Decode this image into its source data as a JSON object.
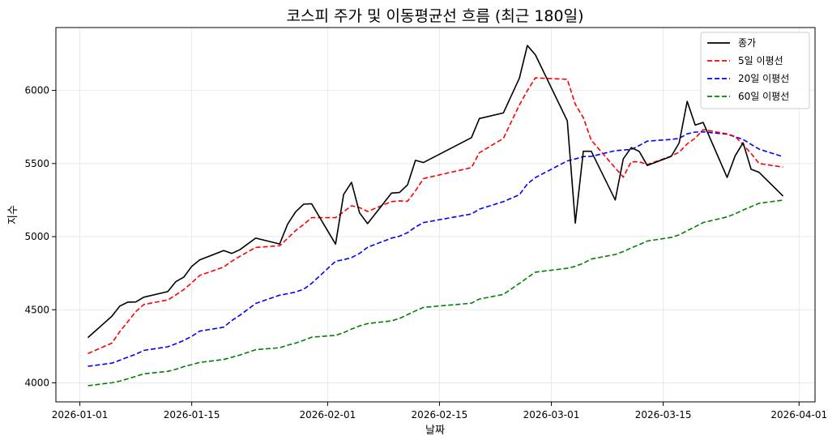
{
  "chart_data": {
    "type": "line",
    "title": "코스피 주가 및 이동평균선 흐름 (최근 180일)",
    "xlabel": "날짜",
    "ylabel": "지수",
    "x_ticks": [
      "2026-01-01",
      "2026-01-15",
      "2026-02-01",
      "2026-02-15",
      "2026-03-01",
      "2026-03-15",
      "2026-04-01"
    ],
    "y_ticks": [
      4000,
      4500,
      5000,
      5500,
      6000
    ],
    "xlim": [
      "2025-12-29",
      "2026-04-03"
    ],
    "ylim": [
      3870,
      6430
    ],
    "grid": true,
    "legend_position": "top-right",
    "series": [
      {
        "name": "종가",
        "color": "#000000",
        "dash": "solid",
        "points": [
          [
            "2026-01-02",
            4310
          ],
          [
            "2026-01-05",
            4455
          ],
          [
            "2026-01-06",
            4525
          ],
          [
            "2026-01-07",
            4552
          ],
          [
            "2026-01-08",
            4553
          ],
          [
            "2026-01-09",
            4586
          ],
          [
            "2026-01-12",
            4624
          ],
          [
            "2026-01-13",
            4692
          ],
          [
            "2026-01-14",
            4723
          ],
          [
            "2026-01-15",
            4797
          ],
          [
            "2026-01-16",
            4841
          ],
          [
            "2026-01-19",
            4905
          ],
          [
            "2026-01-20",
            4885
          ],
          [
            "2026-01-21",
            4910
          ],
          [
            "2026-01-23",
            4990
          ],
          [
            "2026-01-26",
            4950
          ],
          [
            "2026-01-27",
            5085
          ],
          [
            "2026-01-28",
            5170
          ],
          [
            "2026-01-29",
            5222
          ],
          [
            "2026-01-30",
            5225
          ],
          [
            "2026-02-02",
            4949
          ],
          [
            "2026-02-03",
            5288
          ],
          [
            "2026-02-04",
            5371
          ],
          [
            "2026-02-05",
            5163
          ],
          [
            "2026-02-06",
            5089
          ],
          [
            "2026-02-09",
            5298
          ],
          [
            "2026-02-10",
            5302
          ],
          [
            "2026-02-11",
            5354
          ],
          [
            "2026-02-12",
            5522
          ],
          [
            "2026-02-13",
            5507
          ],
          [
            "2026-02-19",
            5677
          ],
          [
            "2026-02-20",
            5808
          ],
          [
            "2026-02-23",
            5846
          ],
          [
            "2026-02-25",
            6084
          ],
          [
            "2026-02-26",
            6307
          ],
          [
            "2026-02-27",
            6244
          ],
          [
            "2026-03-03",
            5792
          ],
          [
            "2026-03-04",
            5093
          ],
          [
            "2026-03-05",
            5584
          ],
          [
            "2026-03-06",
            5584
          ],
          [
            "2026-03-09",
            5251
          ],
          [
            "2026-03-10",
            5532
          ],
          [
            "2026-03-11",
            5609
          ],
          [
            "2026-03-12",
            5583
          ],
          [
            "2026-03-13",
            5487
          ],
          [
            "2026-03-16",
            5549
          ],
          [
            "2026-03-17",
            5641
          ],
          [
            "2026-03-18",
            5925
          ],
          [
            "2026-03-19",
            5763
          ],
          [
            "2026-03-20",
            5781
          ],
          [
            "2026-03-23",
            5405
          ],
          [
            "2026-03-24",
            5553
          ],
          [
            "2026-03-25",
            5642
          ],
          [
            "2026-03-26",
            5461
          ],
          [
            "2026-03-27",
            5439
          ],
          [
            "2026-03-30",
            5278
          ]
        ]
      },
      {
        "name": "5일 이평선",
        "color": "#ff0000",
        "dash": "dashed",
        "points": [
          [
            "2026-01-02",
            4200
          ],
          [
            "2026-01-05",
            4272
          ],
          [
            "2026-01-06",
            4351
          ],
          [
            "2026-01-07",
            4419
          ],
          [
            "2026-01-08",
            4487
          ],
          [
            "2026-01-09",
            4536
          ],
          [
            "2026-01-12",
            4567
          ],
          [
            "2026-01-13",
            4601
          ],
          [
            "2026-01-14",
            4638
          ],
          [
            "2026-01-15",
            4684
          ],
          [
            "2026-01-16",
            4735
          ],
          [
            "2026-01-19",
            4792
          ],
          [
            "2026-01-20",
            4832
          ],
          [
            "2026-01-21",
            4865
          ],
          [
            "2026-01-23",
            4926
          ],
          [
            "2026-01-26",
            4938
          ],
          [
            "2026-01-27",
            4988
          ],
          [
            "2026-01-28",
            5042
          ],
          [
            "2026-01-29",
            5083
          ],
          [
            "2026-01-30",
            5130
          ],
          [
            "2026-02-02",
            5130
          ],
          [
            "2026-02-03",
            5170
          ],
          [
            "2026-02-04",
            5211
          ],
          [
            "2026-02-05",
            5199
          ],
          [
            "2026-02-06",
            5172
          ],
          [
            "2026-02-09",
            5240
          ],
          [
            "2026-02-10",
            5245
          ],
          [
            "2026-02-11",
            5242
          ],
          [
            "2026-02-12",
            5313
          ],
          [
            "2026-02-13",
            5397
          ],
          [
            "2026-02-19",
            5472
          ],
          [
            "2026-02-20",
            5574
          ],
          [
            "2026-02-23",
            5672
          ],
          [
            "2026-02-25",
            5900
          ],
          [
            "2026-02-26",
            5999
          ],
          [
            "2026-02-27",
            6086
          ],
          [
            "2026-03-03",
            6076
          ],
          [
            "2026-03-04",
            5905
          ],
          [
            "2026-03-05",
            5813
          ],
          [
            "2026-03-06",
            5659
          ],
          [
            "2026-03-09",
            5470
          ],
          [
            "2026-03-10",
            5407
          ],
          [
            "2026-03-11",
            5512
          ],
          [
            "2026-03-12",
            5512
          ],
          [
            "2026-03-13",
            5493
          ],
          [
            "2026-03-16",
            5551
          ],
          [
            "2026-03-17",
            5577
          ],
          [
            "2026-03-18",
            5635
          ],
          [
            "2026-03-19",
            5673
          ],
          [
            "2026-03-20",
            5732
          ],
          [
            "2026-03-23",
            5703
          ],
          [
            "2026-03-24",
            5685
          ],
          [
            "2026-03-25",
            5629
          ],
          [
            "2026-03-26",
            5569
          ],
          [
            "2026-03-27",
            5500
          ],
          [
            "2026-03-30",
            5475
          ]
        ]
      },
      {
        "name": "20일 이평선",
        "color": "#0000ff",
        "dash": "dashed",
        "points": [
          [
            "2026-01-02",
            4113
          ],
          [
            "2026-01-05",
            4135
          ],
          [
            "2026-01-06",
            4155
          ],
          [
            "2026-01-07",
            4176
          ],
          [
            "2026-01-08",
            4196
          ],
          [
            "2026-01-09",
            4222
          ],
          [
            "2026-01-12",
            4247
          ],
          [
            "2026-01-13",
            4267
          ],
          [
            "2026-01-14",
            4290
          ],
          [
            "2026-01-15",
            4318
          ],
          [
            "2026-01-16",
            4354
          ],
          [
            "2026-01-19",
            4381
          ],
          [
            "2026-01-20",
            4426
          ],
          [
            "2026-01-21",
            4462
          ],
          [
            "2026-01-23",
            4543
          ],
          [
            "2026-01-26",
            4600
          ],
          [
            "2026-01-27",
            4610
          ],
          [
            "2026-01-28",
            4621
          ],
          [
            "2026-01-29",
            4640
          ],
          [
            "2026-01-30",
            4680
          ],
          [
            "2026-02-02",
            4832
          ],
          [
            "2026-02-03",
            4842
          ],
          [
            "2026-02-04",
            4857
          ],
          [
            "2026-02-05",
            4885
          ],
          [
            "2026-02-06",
            4927
          ],
          [
            "2026-02-09",
            4990
          ],
          [
            "2026-02-10",
            5003
          ],
          [
            "2026-02-11",
            5027
          ],
          [
            "2026-02-12",
            5066
          ],
          [
            "2026-02-13",
            5096
          ],
          [
            "2026-02-19",
            5155
          ],
          [
            "2026-02-20",
            5188
          ],
          [
            "2026-02-23",
            5239
          ],
          [
            "2026-02-25",
            5287
          ],
          [
            "2026-02-26",
            5360
          ],
          [
            "2026-02-27",
            5404
          ],
          [
            "2026-03-03",
            5518
          ],
          [
            "2026-03-04",
            5531
          ],
          [
            "2026-03-05",
            5548
          ],
          [
            "2026-03-06",
            5549
          ],
          [
            "2026-03-09",
            5588
          ],
          [
            "2026-03-10",
            5593
          ],
          [
            "2026-03-11",
            5596
          ],
          [
            "2026-03-12",
            5623
          ],
          [
            "2026-03-13",
            5653
          ],
          [
            "2026-03-16",
            5665
          ],
          [
            "2026-03-17",
            5672
          ],
          [
            "2026-03-18",
            5703
          ],
          [
            "2026-03-19",
            5715
          ],
          [
            "2026-03-20",
            5717
          ],
          [
            "2026-03-23",
            5700
          ],
          [
            "2026-03-24",
            5683
          ],
          [
            "2026-03-25",
            5665
          ],
          [
            "2026-03-26",
            5631
          ],
          [
            "2026-03-27",
            5598
          ],
          [
            "2026-03-30",
            5547
          ]
        ]
      },
      {
        "name": "60일 이평선",
        "color": "#008000",
        "dash": "dashed",
        "points": [
          [
            "2026-01-02",
            3981
          ],
          [
            "2026-01-05",
            4001
          ],
          [
            "2026-01-06",
            4012
          ],
          [
            "2026-01-07",
            4028
          ],
          [
            "2026-01-08",
            4044
          ],
          [
            "2026-01-09",
            4062
          ],
          [
            "2026-01-12",
            4079
          ],
          [
            "2026-01-13",
            4092
          ],
          [
            "2026-01-14",
            4111
          ],
          [
            "2026-01-15",
            4125
          ],
          [
            "2026-01-16",
            4140
          ],
          [
            "2026-01-19",
            4160
          ],
          [
            "2026-01-20",
            4175
          ],
          [
            "2026-01-21",
            4190
          ],
          [
            "2026-01-23",
            4227
          ],
          [
            "2026-01-26",
            4240
          ],
          [
            "2026-01-27",
            4258
          ],
          [
            "2026-01-28",
            4272
          ],
          [
            "2026-01-29",
            4291
          ],
          [
            "2026-01-30",
            4312
          ],
          [
            "2026-02-02",
            4325
          ],
          [
            "2026-02-03",
            4343
          ],
          [
            "2026-02-04",
            4368
          ],
          [
            "2026-02-05",
            4389
          ],
          [
            "2026-02-06",
            4405
          ],
          [
            "2026-02-09",
            4424
          ],
          [
            "2026-02-10",
            4441
          ],
          [
            "2026-02-11",
            4466
          ],
          [
            "2026-02-12",
            4492
          ],
          [
            "2026-02-13",
            4516
          ],
          [
            "2026-02-19",
            4545
          ],
          [
            "2026-02-20",
            4573
          ],
          [
            "2026-02-23",
            4605
          ],
          [
            "2026-02-25",
            4680
          ],
          [
            "2026-02-26",
            4719
          ],
          [
            "2026-02-27",
            4757
          ],
          [
            "2026-03-03",
            4784
          ],
          [
            "2026-03-04",
            4797
          ],
          [
            "2026-03-05",
            4818
          ],
          [
            "2026-03-06",
            4847
          ],
          [
            "2026-03-09",
            4878
          ],
          [
            "2026-03-10",
            4898
          ],
          [
            "2026-03-11",
            4923
          ],
          [
            "2026-03-12",
            4945
          ],
          [
            "2026-03-13",
            4970
          ],
          [
            "2026-03-16",
            4995
          ],
          [
            "2026-03-17",
            5012
          ],
          [
            "2026-03-18",
            5041
          ],
          [
            "2026-03-19",
            5068
          ],
          [
            "2026-03-20",
            5096
          ],
          [
            "2026-03-23",
            5135
          ],
          [
            "2026-03-24",
            5156
          ],
          [
            "2026-03-25",
            5182
          ],
          [
            "2026-03-26",
            5205
          ],
          [
            "2026-03-27",
            5228
          ],
          [
            "2026-03-30",
            5250
          ]
        ]
      }
    ]
  }
}
